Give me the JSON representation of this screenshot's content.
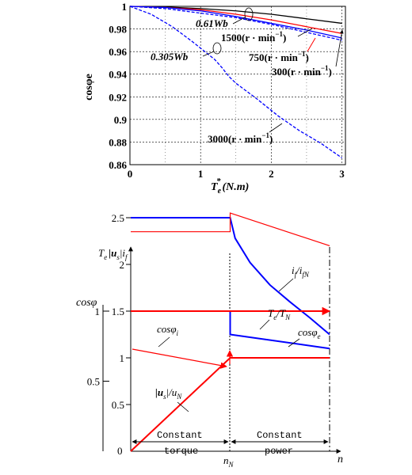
{
  "chart_data": [
    {
      "type": "line",
      "ylabel": "cosφe",
      "xlabel": "Te*(N.m)",
      "xlim": [
        0,
        3.05
      ],
      "ylim": [
        0.86,
        1.0
      ],
      "xticks": [
        "0",
        "1",
        "2",
        "3"
      ],
      "yticks": [
        "1",
        "0.98",
        "0.96",
        "0.94",
        "0.92",
        "0.9",
        "0.88",
        "0.86"
      ],
      "grid": true,
      "series": [
        {
          "name": "0.61Wb",
          "color": "#000000",
          "style": "solid",
          "x": [
            0,
            0.5,
            1,
            1.5,
            2,
            2.5,
            3
          ],
          "y": [
            1.0,
            0.9995,
            0.998,
            0.996,
            0.993,
            0.989,
            0.985
          ]
        },
        {
          "name": "300(r·min⁻¹)",
          "color": "#ff0000",
          "style": "solid",
          "x": [
            0,
            0.5,
            1,
            1.5,
            2,
            2.5,
            3
          ],
          "y": [
            1.0,
            0.999,
            0.997,
            0.993,
            0.988,
            0.982,
            0.976
          ]
        },
        {
          "name": "750(r·min⁻¹)",
          "color": "#0000ff",
          "style": "solid",
          "x": [
            0,
            0.5,
            1,
            1.5,
            2,
            2.5,
            3
          ],
          "y": [
            1.0,
            0.999,
            0.996,
            0.991,
            0.985,
            0.979,
            0.972
          ]
        },
        {
          "name": "1500(r·min⁻¹)",
          "color": "#0000ff",
          "style": "dash",
          "x": [
            0,
            0.5,
            1,
            1.5,
            2,
            2.5,
            3
          ],
          "y": [
            1.0,
            0.998,
            0.994,
            0.99,
            0.984,
            0.977,
            0.97
          ]
        },
        {
          "name": "3000(r·min⁻¹)",
          "color": "#0000ff",
          "style": "dash",
          "x": [
            0,
            0.3,
            0.6,
            0.9,
            1.2,
            1.3,
            1.4,
            1.5,
            1.8,
            2.1,
            2.4,
            2.7,
            3.0
          ],
          "y": [
            1.0,
            0.993,
            0.982,
            0.968,
            0.953,
            0.946,
            0.938,
            0.932,
            0.918,
            0.903,
            0.89,
            0.879,
            0.866
          ]
        }
      ],
      "annotations": [
        "0.61Wb",
        "1500(r·min⁻¹)",
        "0.305Wb",
        "750(r·min⁻¹)",
        "300(r·min⁻¹)",
        "3000(r·min⁻¹)"
      ]
    },
    {
      "type": "line",
      "xlabel": "n",
      "ylabel": "Te |us| if",
      "ylabel2": "cosφ",
      "xticks": [
        "0",
        "nN"
      ],
      "yticks": [
        "0",
        "0.5",
        "1",
        "1.5",
        "2",
        "2.5"
      ],
      "yticks_cos": [
        "1",
        "0.5"
      ],
      "xlim": [
        0,
        2
      ],
      "ylim": [
        0,
        2.75
      ],
      "series": [
        {
          "name": "Te/TN",
          "color": "#0000ff",
          "x": [
            0,
            1,
            1.05,
            1.2,
            1.4,
            1.6,
            1.8,
            2.0
          ],
          "y": [
            2.5,
            2.5,
            2.28,
            2.02,
            1.78,
            1.6,
            1.43,
            1.25
          ]
        },
        {
          "name": "if/ifN",
          "color": "#ff0000",
          "x": [
            0,
            1,
            1,
            2
          ],
          "y": [
            2.35,
            2.35,
            2.55,
            2.2
          ]
        },
        {
          "name": "cosφi",
          "color": "#0000ff",
          "x": [
            0,
            1,
            1,
            2
          ],
          "y": [
            1.5,
            1.5,
            1.25,
            1.1
          ]
        },
        {
          "name": "cosφe",
          "color": "#ff0000",
          "x": [
            0,
            1,
            2
          ],
          "y": [
            1.5,
            1.5,
            1.5
          ]
        },
        {
          "name": "|us|/uN",
          "color": "#ff0000",
          "x": [
            0,
            1,
            2
          ],
          "y": [
            0,
            1,
            1
          ]
        }
      ],
      "regions": [
        "Constant torque",
        "Constant power"
      ]
    }
  ],
  "top": {
    "ticks_x": [
      "0",
      "1",
      "2",
      "3"
    ],
    "ticks_y": [
      "1",
      "0.98",
      "0.96",
      "0.94",
      "0.92",
      "0.9",
      "0.88",
      "0.86"
    ],
    "ylabel": "cosφe",
    "xlabel_base": "T",
    "xlabel_sub": "e",
    "xlabel_sup": "*",
    "xlabel_unit": "(N.m)",
    "ann_061": "0.61Wb",
    "ann_0305": "0.305Wb",
    "ann_1500": "1500(r · min",
    "ann_750": "750(r · min",
    "ann_300": "300(r · min",
    "ann_3000": "3000(r · min",
    "ann_exp": "−1",
    "ann_close": ")"
  },
  "bottom": {
    "ylabel_Te": "T",
    "ylabel_Te_sub": "e",
    "ylabel_us": "|u",
    "ylabel_us_sub": "s",
    "ylabel_bar": "|",
    "ylabel_if": "i",
    "ylabel_if_sub": "f",
    "cos_label": "cosφ",
    "ticks_left": [
      "2.5",
      "2",
      "1.5",
      "1",
      "0.5",
      "0"
    ],
    "ticks_cos": [
      "1",
      "0.5"
    ],
    "x_zero": "0",
    "x_nN": "n",
    "x_nN_sub": "N",
    "x_n": "n",
    "label_if": "i",
    "label_if_sub": "f",
    "label_if_den": "/i",
    "label_if_den_sub": "fN",
    "label_Te": "T",
    "label_Te_sub": "e",
    "label_Te_den": "/T",
    "label_Te_den_sub": "N",
    "label_cosi": "cosφ",
    "label_cosi_sub": "i",
    "label_cose": "cosφ",
    "label_cose_sub": "e",
    "label_us": "|u",
    "label_us_sub": "s",
    "label_us_den": "|/u",
    "label_us_den_sub": "N",
    "region1_line1": "Constant",
    "region1_line2": "torque",
    "region2_line1": "Constant",
    "region2_line2": "power"
  }
}
